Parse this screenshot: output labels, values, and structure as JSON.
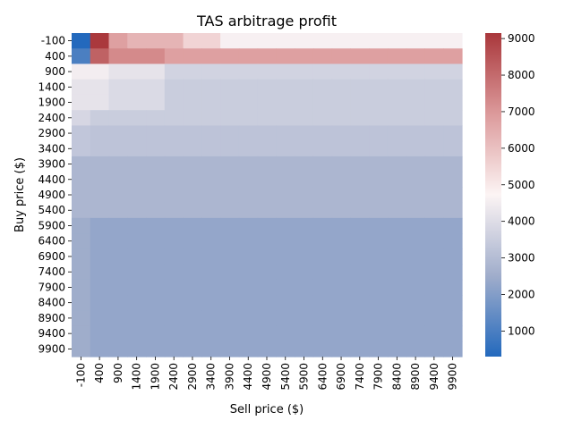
{
  "chart_data": {
    "type": "heatmap",
    "title": "TAS arbitrage profit",
    "xlabel": "Sell price ($)",
    "ylabel": "Buy price ($)",
    "x_categories": [
      "-100",
      "400",
      "900",
      "1400",
      "1900",
      "2400",
      "2900",
      "3400",
      "3900",
      "4400",
      "4900",
      "5400",
      "5900",
      "6400",
      "6900",
      "7400",
      "7900",
      "8400",
      "8900",
      "9400",
      "9900"
    ],
    "y_categories": [
      "-100",
      "400",
      "900",
      "1400",
      "1900",
      "2400",
      "2900",
      "3400",
      "3900",
      "4400",
      "4900",
      "5400",
      "5900",
      "6400",
      "6900",
      "7400",
      "7900",
      "8400",
      "8900",
      "9400",
      "9900"
    ],
    "values": [
      [
        300,
        9100,
        6800,
        6300,
        6300,
        6300,
        5500,
        5500,
        4600,
        4600,
        4600,
        4600,
        4600,
        4600,
        4600,
        4600,
        4600,
        4600,
        4600,
        4600,
        4600
      ],
      [
        1000,
        8200,
        7300,
        7300,
        7300,
        6800,
        6800,
        6800,
        6800,
        6800,
        6800,
        6800,
        6800,
        6800,
        6800,
        6800,
        6800,
        6800,
        6800,
        6800,
        6800
      ],
      [
        4500,
        4500,
        4200,
        4200,
        4200,
        3700,
        3700,
        3700,
        3700,
        3700,
        3700,
        3700,
        3700,
        3700,
        3700,
        3700,
        3700,
        3700,
        3700,
        3700,
        3700
      ],
      [
        4200,
        4200,
        3900,
        3900,
        3900,
        3500,
        3500,
        3500,
        3500,
        3500,
        3500,
        3500,
        3500,
        3500,
        3500,
        3500,
        3500,
        3500,
        3500,
        3500,
        3500
      ],
      [
        4200,
        4200,
        3900,
        3900,
        3900,
        3500,
        3500,
        3500,
        3500,
        3500,
        3500,
        3500,
        3500,
        3500,
        3500,
        3500,
        3500,
        3500,
        3500,
        3500,
        3500
      ],
      [
        3800,
        3500,
        3500,
        3500,
        3500,
        3500,
        3500,
        3500,
        3500,
        3500,
        3500,
        3500,
        3500,
        3500,
        3500,
        3500,
        3500,
        3500,
        3500,
        3500,
        3500
      ],
      [
        3300,
        3200,
        3200,
        3200,
        3200,
        3200,
        3200,
        3200,
        3200,
        3200,
        3200,
        3200,
        3200,
        3200,
        3200,
        3200,
        3200,
        3200,
        3200,
        3200,
        3200
      ],
      [
        3300,
        3200,
        3200,
        3200,
        3200,
        3200,
        3200,
        3200,
        3200,
        3200,
        3200,
        3200,
        3200,
        3200,
        3200,
        3200,
        3200,
        3200,
        3200,
        3200,
        3200
      ],
      [
        2800,
        2800,
        2800,
        2800,
        2800,
        2800,
        2800,
        2800,
        2800,
        2800,
        2800,
        2800,
        2800,
        2800,
        2800,
        2800,
        2800,
        2800,
        2800,
        2800,
        2800
      ],
      [
        2800,
        2800,
        2800,
        2800,
        2800,
        2800,
        2800,
        2800,
        2800,
        2800,
        2800,
        2800,
        2800,
        2800,
        2800,
        2800,
        2800,
        2800,
        2800,
        2800,
        2800
      ],
      [
        2800,
        2800,
        2800,
        2800,
        2800,
        2800,
        2800,
        2800,
        2800,
        2800,
        2800,
        2800,
        2800,
        2800,
        2800,
        2800,
        2800,
        2800,
        2800,
        2800,
        2800
      ],
      [
        2800,
        2800,
        2800,
        2800,
        2800,
        2800,
        2800,
        2800,
        2800,
        2800,
        2800,
        2800,
        2800,
        2800,
        2800,
        2800,
        2800,
        2800,
        2800,
        2800,
        2800
      ],
      [
        2500,
        2300,
        2300,
        2300,
        2300,
        2300,
        2300,
        2300,
        2300,
        2300,
        2300,
        2300,
        2300,
        2300,
        2300,
        2300,
        2300,
        2300,
        2300,
        2300,
        2300
      ],
      [
        2500,
        2300,
        2300,
        2300,
        2300,
        2300,
        2300,
        2300,
        2300,
        2300,
        2300,
        2300,
        2300,
        2300,
        2300,
        2300,
        2300,
        2300,
        2300,
        2300,
        2300
      ],
      [
        2500,
        2300,
        2300,
        2300,
        2300,
        2300,
        2300,
        2300,
        2300,
        2300,
        2300,
        2300,
        2300,
        2300,
        2300,
        2300,
        2300,
        2300,
        2300,
        2300,
        2300
      ],
      [
        2500,
        2300,
        2300,
        2300,
        2300,
        2300,
        2300,
        2300,
        2300,
        2300,
        2300,
        2300,
        2300,
        2300,
        2300,
        2300,
        2300,
        2300,
        2300,
        2300,
        2300
      ],
      [
        2500,
        2300,
        2300,
        2300,
        2300,
        2300,
        2300,
        2300,
        2300,
        2300,
        2300,
        2300,
        2300,
        2300,
        2300,
        2300,
        2300,
        2300,
        2300,
        2300,
        2300
      ],
      [
        2500,
        2300,
        2300,
        2300,
        2300,
        2300,
        2300,
        2300,
        2300,
        2300,
        2300,
        2300,
        2300,
        2300,
        2300,
        2300,
        2300,
        2300,
        2300,
        2300,
        2300
      ],
      [
        2500,
        2300,
        2300,
        2300,
        2300,
        2300,
        2300,
        2300,
        2300,
        2300,
        2300,
        2300,
        2300,
        2300,
        2300,
        2300,
        2300,
        2300,
        2300,
        2300,
        2300
      ],
      [
        2500,
        2300,
        2300,
        2300,
        2300,
        2300,
        2300,
        2300,
        2300,
        2300,
        2300,
        2300,
        2300,
        2300,
        2300,
        2300,
        2300,
        2300,
        2300,
        2300,
        2300
      ],
      [
        2500,
        2300,
        2300,
        2300,
        2300,
        2300,
        2300,
        2300,
        2300,
        2300,
        2300,
        2300,
        2300,
        2300,
        2300,
        2300,
        2300,
        2300,
        2300,
        2300,
        2300
      ]
    ],
    "colorbar": {
      "range": [
        300,
        9150
      ],
      "ticks": [
        1000,
        2000,
        3000,
        4000,
        5000,
        6000,
        7000,
        8000,
        9000
      ],
      "tick_labels": [
        "1000",
        "2000",
        "3000",
        "4000",
        "5000",
        "6000",
        "7000",
        "8000",
        "9000"
      ],
      "colormap": "vlag"
    },
    "colormap_stops": [
      "#2369bd",
      "#a0adcb",
      "#fcf4f4",
      "#dc9a9b",
      "#a9373b"
    ]
  }
}
